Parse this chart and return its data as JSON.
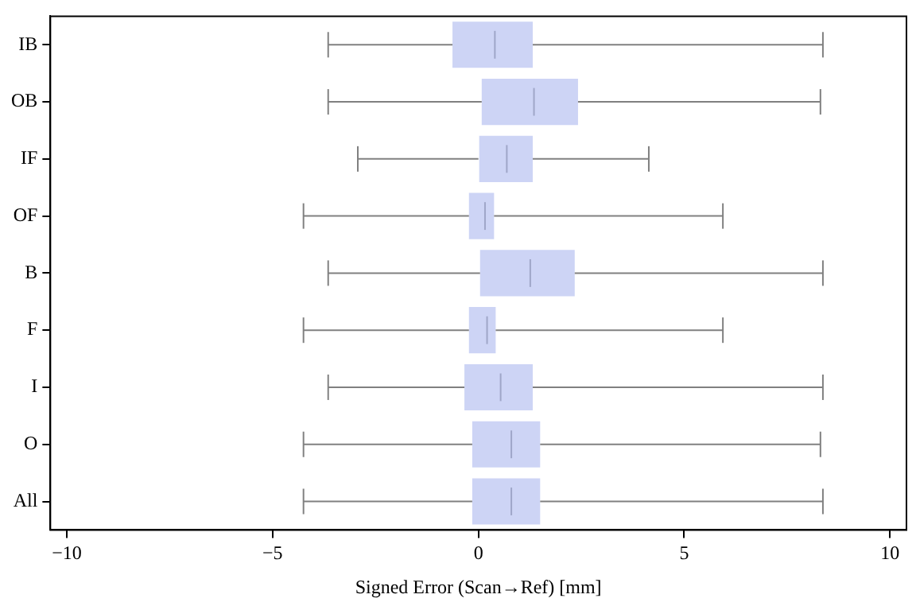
{
  "chart_data": {
    "type": "box",
    "orientation": "horizontal",
    "xlabel": "Signed Error (Scan→Ref) [mm]",
    "categories": [
      "IB",
      "OB",
      "IF",
      "OF",
      "B",
      "F",
      "I",
      "O",
      "All"
    ],
    "color": "#cdd4f5",
    "boxes": [
      {
        "low": -3.65,
        "q1": -0.63,
        "median": 0.4,
        "q3": 1.32,
        "high": 8.37
      },
      {
        "low": -3.65,
        "q1": 0.08,
        "median": 1.35,
        "q3": 2.42,
        "high": 8.31
      },
      {
        "low": -2.93,
        "q1": 0.0,
        "median": 0.69,
        "q3": 1.32,
        "high": 4.14
      },
      {
        "low": -4.25,
        "q1": -0.23,
        "median": 0.16,
        "q3": 0.38,
        "high": 5.94
      },
      {
        "low": -3.65,
        "q1": 0.04,
        "median": 1.26,
        "q3": 2.34,
        "high": 8.37
      },
      {
        "low": -4.25,
        "q1": -0.23,
        "median": 0.21,
        "q3": 0.42,
        "high": 5.94
      },
      {
        "low": -3.65,
        "q1": -0.34,
        "median": 0.54,
        "q3": 1.32,
        "high": 8.37
      },
      {
        "low": -4.25,
        "q1": -0.15,
        "median": 0.8,
        "q3": 1.5,
        "high": 8.31
      },
      {
        "low": -4.25,
        "q1": -0.15,
        "median": 0.8,
        "q3": 1.5,
        "high": 8.37
      }
    ],
    "xlim": [
      -10.4,
      10.4
    ],
    "xticks": [
      -10,
      -5,
      0,
      5,
      10
    ],
    "grid": false,
    "legend": false
  }
}
